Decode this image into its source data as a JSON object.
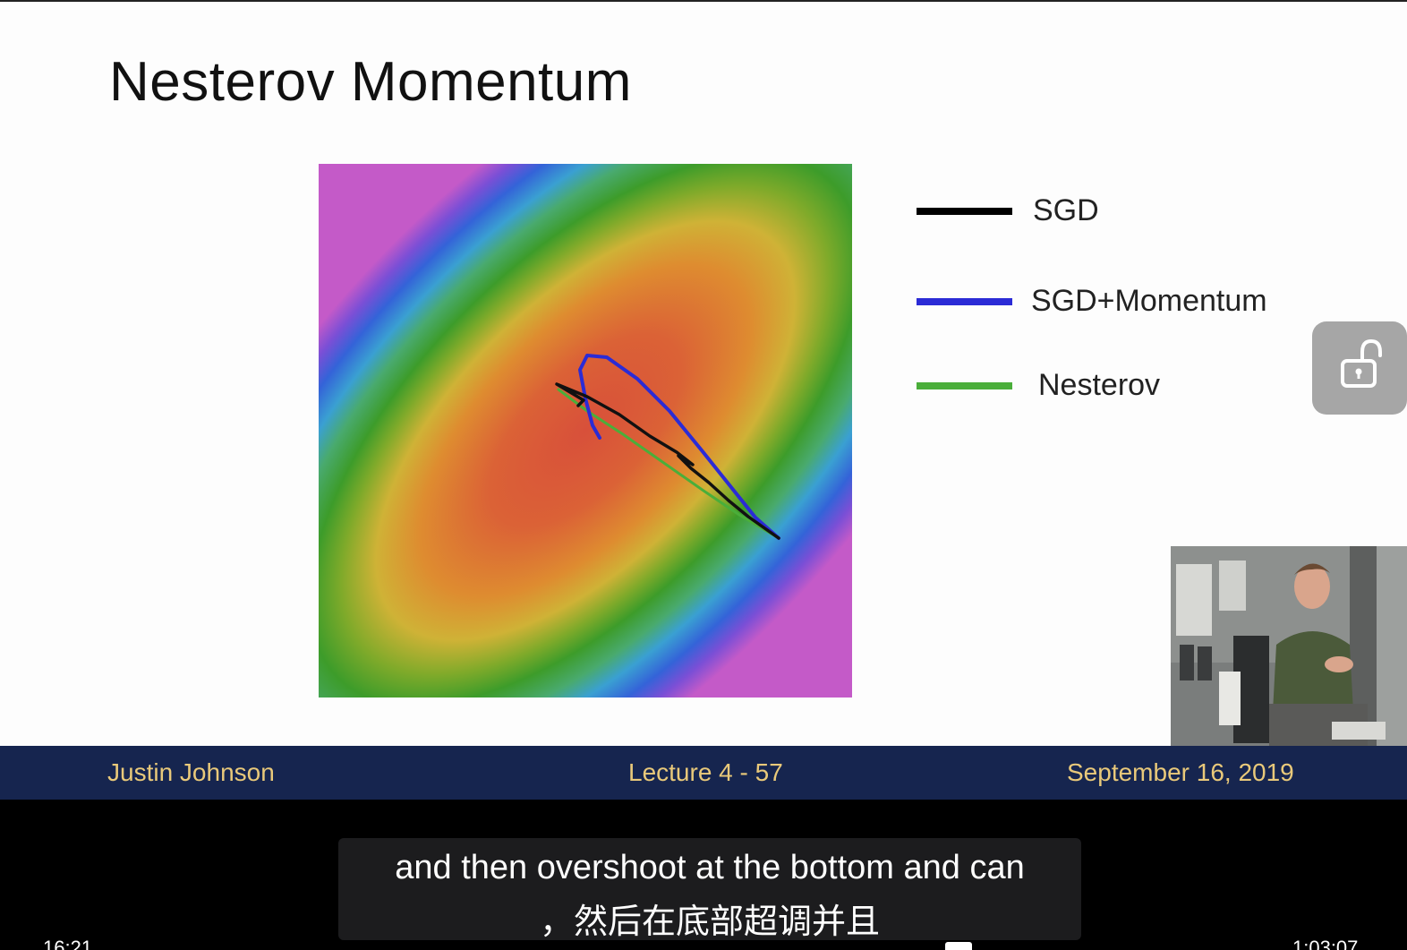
{
  "slide": {
    "title": "Nesterov Momentum",
    "legend": [
      {
        "label": "SGD",
        "color": "#000000"
      },
      {
        "label": "SGD+Momentum",
        "color": "#2b2bd6"
      },
      {
        "label": "Nesterov",
        "color": "#4aae3a"
      }
    ],
    "footer": {
      "author": "Justin Johnson",
      "lecture": "Lecture 4 - 57",
      "date": "September 16, 2019"
    }
  },
  "subtitles": {
    "english": "and then overshoot at the bottom and can",
    "chinese": "，然后在底部超调并且"
  },
  "status": {
    "left": "16:21",
    "right": "1:03:07"
  },
  "controls": {
    "lock_icon": "unlock-icon"
  }
}
